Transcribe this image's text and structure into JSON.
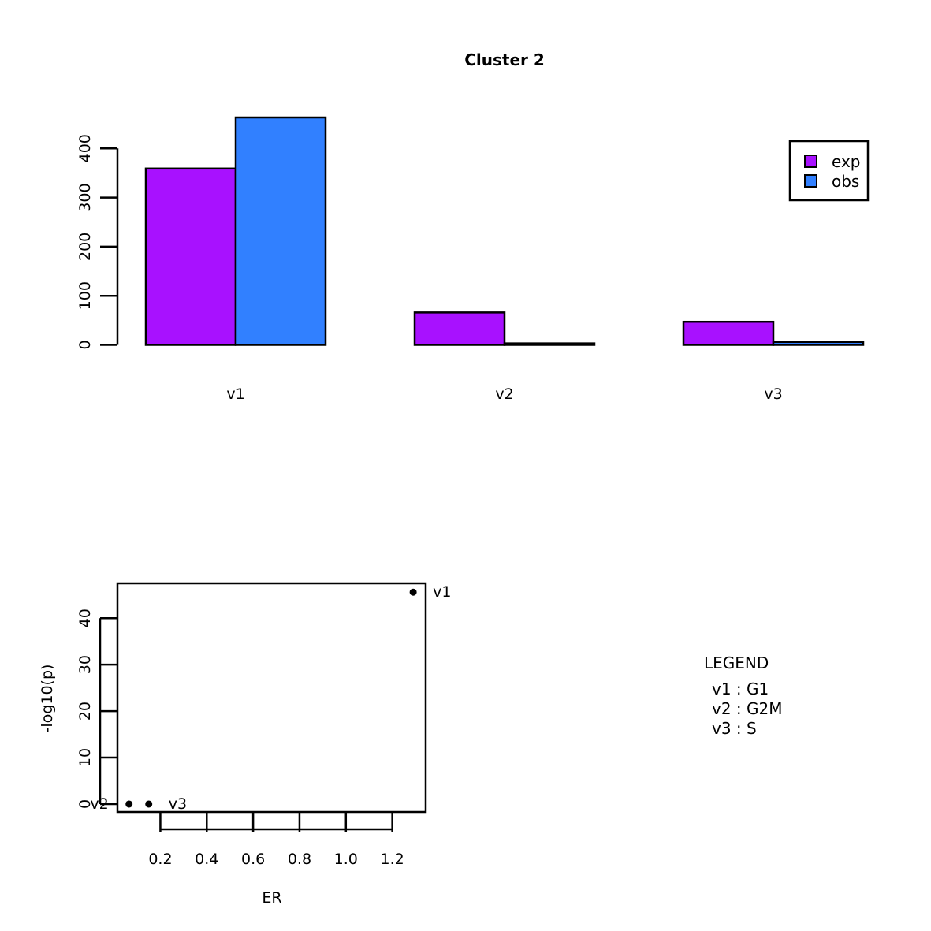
{
  "chart_data": [
    {
      "type": "bar",
      "title": "Cluster 2",
      "categories": [
        "v1",
        "v2",
        "v3"
      ],
      "series": [
        {
          "name": "exp",
          "values": [
            359,
            66,
            47
          ],
          "color": "#A811FF"
        },
        {
          "name": "obs",
          "values": [
            463,
            3,
            6
          ],
          "color": "#3180FF"
        }
      ],
      "ylim": [
        0,
        463
      ],
      "yticks": [
        0,
        100,
        200,
        300,
        400
      ],
      "legend_position": "top-right"
    },
    {
      "type": "scatter",
      "xlabel": "ER",
      "ylabel": "-log10(p)",
      "xticks": [
        0.2,
        0.4,
        0.6,
        0.8,
        1.0,
        1.2
      ],
      "yticks": [
        0,
        10,
        20,
        30,
        40
      ],
      "xlim": [
        0.015,
        1.344
      ],
      "ylim": [
        -1.7,
        47.5
      ],
      "points": [
        {
          "label": "v1",
          "x": 1.29,
          "y": 45.6
        },
        {
          "label": "v2",
          "x": 0.065,
          "y": 0
        },
        {
          "label": "v3",
          "x": 0.15,
          "y": 0
        }
      ]
    }
  ],
  "category_legend": {
    "title": "LEGEND",
    "entries": [
      "v1 : G1",
      "v2 : G2M",
      "v3 : S"
    ]
  }
}
